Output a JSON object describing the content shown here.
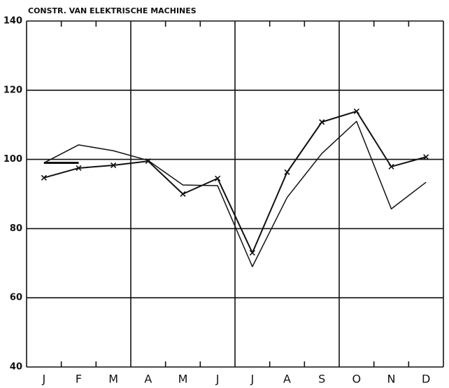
{
  "chart_data": {
    "type": "line",
    "title": "CONSTR. VAN ELEKTRISCHE MACHINES",
    "categories": [
      "J",
      "F",
      "M",
      "A",
      "M",
      "J",
      "J",
      "A",
      "S",
      "O",
      "N",
      "D"
    ],
    "series": [
      {
        "color": "#111111",
        "marker": "x",
        "values": [
          94.7,
          97.5,
          98.3,
          99.5,
          90,
          94.5,
          73,
          96.3,
          110.8,
          113.9,
          97.9,
          100.7
        ]
      },
      {
        "color": "#111111",
        "values": [
          99,
          104.2,
          102.5,
          99.7,
          92.6,
          92.4,
          69,
          89,
          101.7,
          111,
          85.7,
          93.4
        ]
      },
      {
        "color": "#111111",
        "values": [
          99,
          99,
          null,
          null,
          null,
          null,
          null,
          null,
          null,
          null,
          null,
          null
        ]
      }
    ],
    "ylim": [
      40,
      140
    ],
    "yticks": [
      40,
      60,
      80,
      100,
      120,
      140
    ],
    "grid": true
  }
}
